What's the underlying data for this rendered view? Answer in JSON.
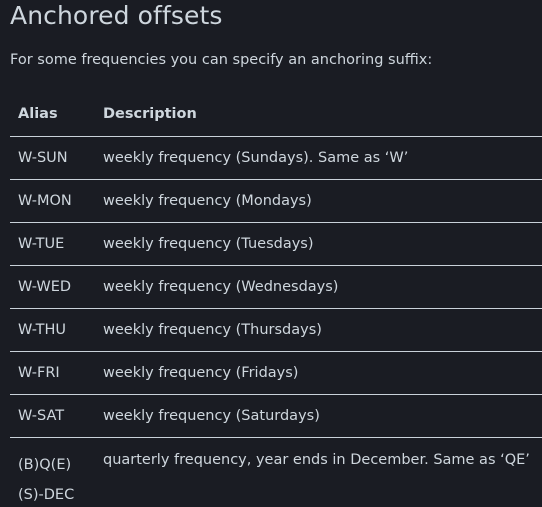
{
  "section": {
    "title": "Anchored offsets",
    "intro": "For some frequencies you can specify an anchoring suffix:"
  },
  "table": {
    "headers": {
      "alias": "Alias",
      "description": "Description"
    },
    "rows": [
      {
        "alias": "W-SUN",
        "description": "weekly frequency (Sundays). Same as ‘W’"
      },
      {
        "alias": "W-MON",
        "description": "weekly frequency (Mondays)"
      },
      {
        "alias": "W-TUE",
        "description": "weekly frequency (Tuesdays)"
      },
      {
        "alias": "W-WED",
        "description": "weekly frequency (Wednesdays)"
      },
      {
        "alias": "W-THU",
        "description": "weekly frequency (Thursdays)"
      },
      {
        "alias": "W-FRI",
        "description": "weekly frequency (Fridays)"
      },
      {
        "alias": "W-SAT",
        "description": "weekly frequency (Saturdays)"
      },
      {
        "alias_line1": "(B)Q(E)",
        "alias_line2": "(S)-DEC",
        "description": "quarterly frequency, year ends in December. Same as ‘QE’"
      }
    ]
  }
}
